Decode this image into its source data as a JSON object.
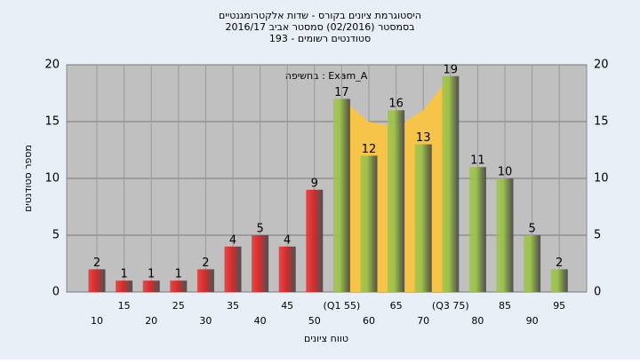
{
  "chart_data": {
    "type": "bar",
    "title": [
      "היסטוגרמת ציונים בקורס - שדות אלקטרומגנטיים",
      "בסמסטר  (02/2016)  סמסטר אביב 2016/17",
      "סטודנטים רשומים - 193"
    ],
    "annotation": "בחשיפה : Exam_A",
    "y_label": "מספר סטודנטים",
    "x_label": "טווח ציונים",
    "categories": [
      "10",
      "15",
      "20",
      "25",
      "30",
      "35",
      "40",
      "45",
      "50",
      "(Q1 55)",
      "60",
      "65",
      "70",
      "(Q3 75)",
      "80",
      "85",
      "90",
      "95"
    ],
    "values": [
      2,
      1,
      1,
      1,
      2,
      4,
      5,
      4,
      9,
      17,
      12,
      16,
      13,
      19,
      11,
      10,
      5,
      2
    ],
    "colors": [
      "#e02a2a",
      "#e02a2a",
      "#e02a2a",
      "#e02a2a",
      "#e02a2a",
      "#e02a2a",
      "#e02a2a",
      "#e02a2a",
      "#e02a2a",
      "#9cc24a",
      "#9cc24a",
      "#9cc24a",
      "#9cc24a",
      "#9cc24a",
      "#9cc24a",
      "#9cc24a",
      "#9cc24a",
      "#9cc24a"
    ],
    "band": {
      "color": "#f7c44a",
      "values": [
        null,
        null,
        null,
        null,
        null,
        null,
        null,
        null,
        null,
        17,
        15,
        14.5,
        16,
        19,
        null,
        null,
        null,
        null
      ]
    },
    "ylim": [
      0,
      20
    ],
    "yticks": [
      0,
      5,
      10,
      15,
      20
    ],
    "grid": true
  }
}
